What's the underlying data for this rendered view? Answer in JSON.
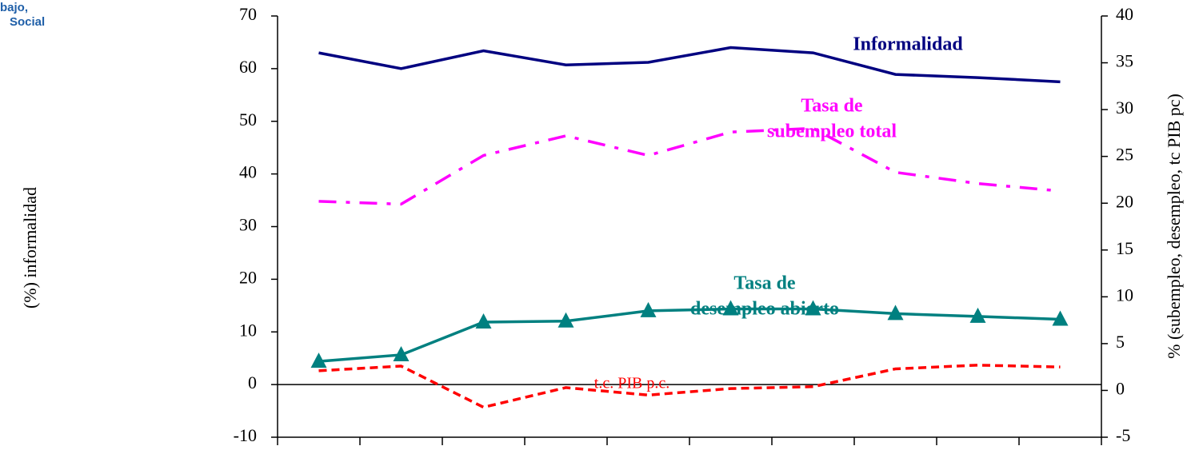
{
  "logo": [
    "bajo,",
    "Social"
  ],
  "chart_data": {
    "type": "line",
    "categories": [
      null,
      null,
      null,
      null,
      null,
      null,
      null,
      null,
      null,
      null
    ],
    "ylabel": "(%) informalidad",
    "y2label": "% (subempleo, desempleo, tc PIB pc)",
    "ylim": [
      -10,
      70
    ],
    "yticks": [
      -10,
      0,
      10,
      20,
      30,
      40,
      50,
      60,
      70
    ],
    "y2lim": [
      -5,
      40
    ],
    "y2ticks": [
      -5,
      0,
      5,
      10,
      15,
      20,
      25,
      30,
      35,
      40
    ],
    "series": [
      {
        "label": [
          "Informalidad"
        ],
        "color": "#000080",
        "dash": "solid",
        "axis": "y",
        "values": [
          63.0,
          60.0,
          63.4,
          60.7,
          61.2,
          64.0,
          63.0,
          58.9,
          58.3,
          57.5
        ]
      },
      {
        "label": [
          "Tasa de",
          "subempleo total"
        ],
        "color": "#ff00ff",
        "dash": "dashdot",
        "axis": "y2",
        "values": [
          20.2,
          19.9,
          25.1,
          27.2,
          25.1,
          27.6,
          28.0,
          23.3,
          22.1,
          21.3
        ]
      },
      {
        "label": [
          "Tasa de",
          "desempleo abierto"
        ],
        "color": "#008080",
        "dash": "solid",
        "marker": "triangle",
        "axis": "y2",
        "values": [
          3.1,
          3.8,
          7.3,
          7.4,
          8.5,
          8.7,
          8.7,
          8.2,
          7.9,
          7.6
        ]
      },
      {
        "label": [
          "t.c. PIB p.c."
        ],
        "color": "#ff0000",
        "dash": "dashed",
        "axis": "y2",
        "values": [
          2.1,
          2.6,
          -1.8,
          0.3,
          -0.5,
          0.2,
          0.4,
          2.3,
          2.7,
          2.5
        ]
      }
    ]
  }
}
